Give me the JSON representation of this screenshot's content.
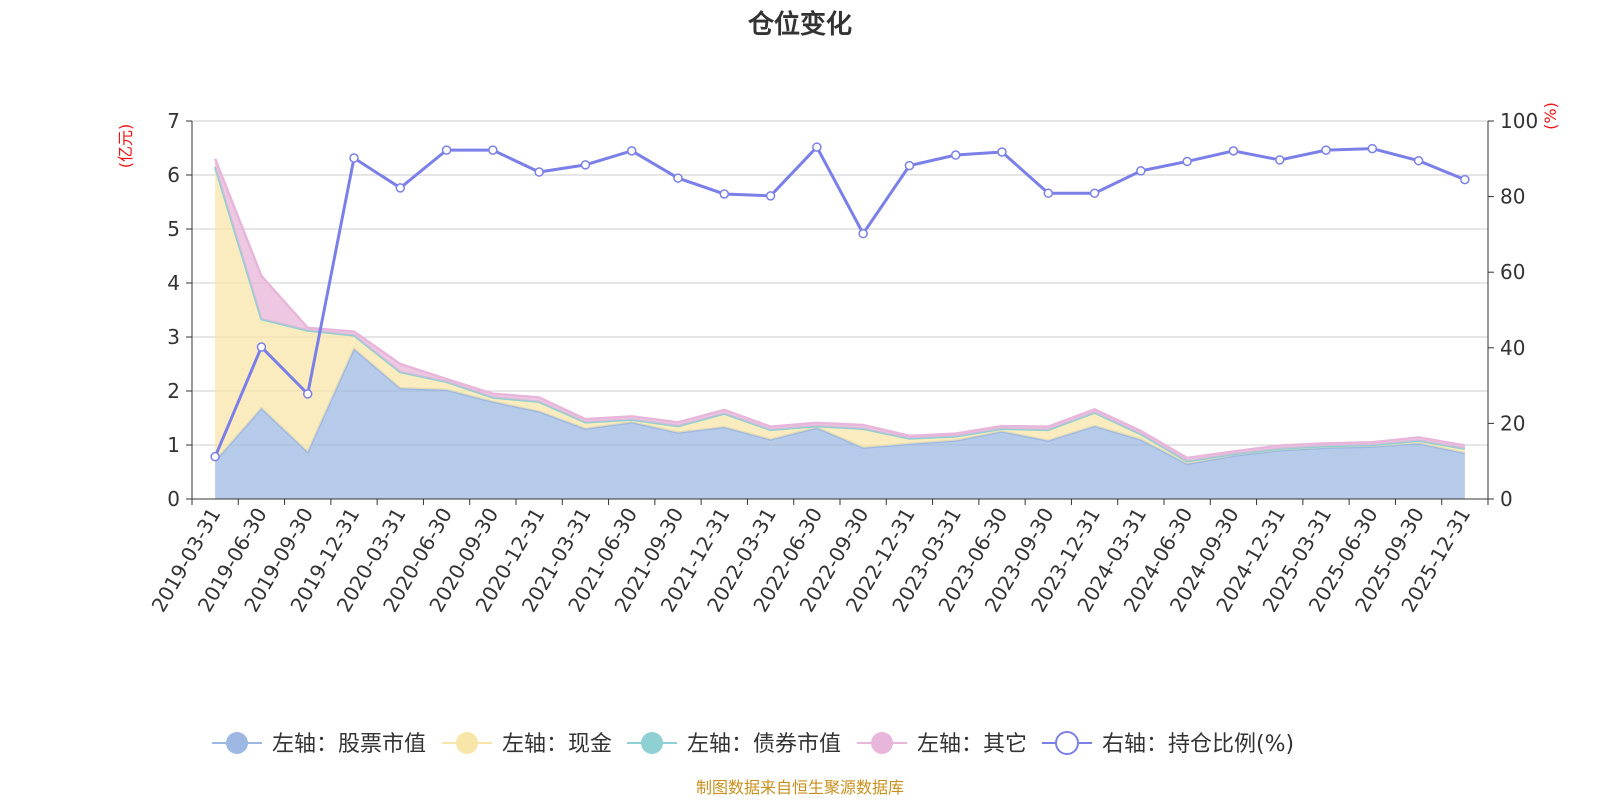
{
  "chart_data": {
    "type": "area",
    "title": "仓位变化",
    "source_note": "制图数据来自恒生聚源数据库",
    "left_axis": {
      "label": "(亿元)",
      "min": 0,
      "max": 7,
      "ticks": [
        0,
        1,
        2,
        3,
        4,
        5,
        6,
        7
      ]
    },
    "right_axis": {
      "label": "(%)",
      "min": 0,
      "max": 100,
      "ticks": [
        0,
        20,
        40,
        60,
        80,
        100
      ]
    },
    "categories": [
      "2019-03-31",
      "2019-06-30",
      "2019-09-30",
      "2019-12-31",
      "2020-03-31",
      "2020-06-30",
      "2020-09-30",
      "2020-12-31",
      "2021-03-31",
      "2021-06-30",
      "2021-09-30",
      "2021-12-31",
      "2022-03-31",
      "2022-06-30",
      "2022-09-30",
      "2022-12-31",
      "2023-03-31",
      "2023-06-30",
      "2023-09-30",
      "2023-12-31",
      "2024-03-31",
      "2024-06-30",
      "2024-09-30",
      "2024-12-31",
      "2025-03-31",
      "2025-06-30",
      "2025-09-30",
      "2025-12-31"
    ],
    "series": [
      {
        "name": "左轴：股票市值",
        "axis": "left",
        "stack": true,
        "color": "#9db8e2",
        "values": [
          0.7,
          1.68,
          0.87,
          2.78,
          2.05,
          2.02,
          1.8,
          1.62,
          1.3,
          1.42,
          1.23,
          1.33,
          1.1,
          1.32,
          0.95,
          1.02,
          1.08,
          1.25,
          1.08,
          1.35,
          1.1,
          0.65,
          0.8,
          0.9,
          0.95,
          0.97,
          1.03,
          0.85
        ]
      },
      {
        "name": "左轴：现金",
        "axis": "left",
        "stack": true,
        "color": "#f8e6a8",
        "values": [
          5.45,
          1.65,
          2.25,
          0.25,
          0.3,
          0.15,
          0.08,
          0.18,
          0.12,
          0.05,
          0.12,
          0.25,
          0.18,
          0.03,
          0.35,
          0.1,
          0.08,
          0.05,
          0.2,
          0.25,
          0.1,
          0.05,
          0.03,
          0.03,
          0.03,
          0.03,
          0.05,
          0.08
        ]
      },
      {
        "name": "左轴：债券市值",
        "axis": "left",
        "stack": true,
        "color": "#8fd0d4",
        "values": [
          0,
          0,
          0,
          0,
          0,
          0,
          0,
          0,
          0,
          0,
          0,
          0,
          0,
          0,
          0,
          0,
          0,
          0,
          0,
          0,
          0,
          0,
          0,
          0,
          0,
          0,
          0,
          0
        ]
      },
      {
        "name": "左轴：其它",
        "axis": "left",
        "stack": true,
        "color": "#e8b6da",
        "values": [
          0.15,
          0.8,
          0.05,
          0.07,
          0.15,
          0.05,
          0.07,
          0.08,
          0.06,
          0.06,
          0.07,
          0.07,
          0.06,
          0.06,
          0.07,
          0.05,
          0.05,
          0.05,
          0.06,
          0.06,
          0.06,
          0.06,
          0.05,
          0.06,
          0.05,
          0.05,
          0.06,
          0.06
        ]
      },
      {
        "name": "右轴：持仓比例(%)",
        "axis": "right",
        "type": "line",
        "color": "#7b7fe8",
        "values": [
          11.2,
          40.2,
          27.8,
          90.2,
          82.3,
          92.3,
          92.3,
          86.5,
          88.4,
          92.1,
          84.9,
          80.7,
          80.2,
          93.1,
          70.2,
          88.2,
          91.0,
          91.8,
          80.9,
          80.9,
          86.8,
          89.3,
          92.1,
          89.7,
          92.3,
          92.7,
          89.5,
          84.5
        ]
      }
    ],
    "legend_position": "bottom"
  }
}
